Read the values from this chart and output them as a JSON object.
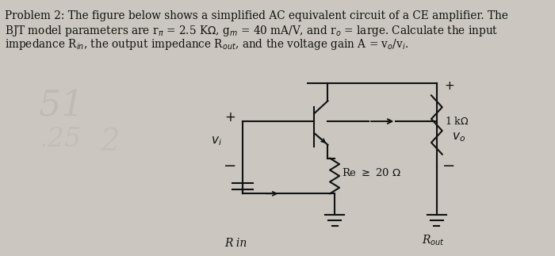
{
  "bg_color": "#e8e4de",
  "text_color": "#111111",
  "circuit_area_bg": "#f0ece6",
  "faint_text_color": "#c0b8b0",
  "problem_lines": [
    "Problem 2: The figure below shows a simplified AC equivalent circuit of a CE amplifier. The",
    "BJT model parameters are r$_{\\pi}$ = 2.5 K$\\Omega$, g$_{m}$ = 40 mA/V, and r$_{o}$ = large. Calculate the input",
    "impedance R$_{in}$, the output impedance R$_{out}$, and the voltage gain A = v$_{o}$/v$_{i}$."
  ],
  "lw": 1.5
}
